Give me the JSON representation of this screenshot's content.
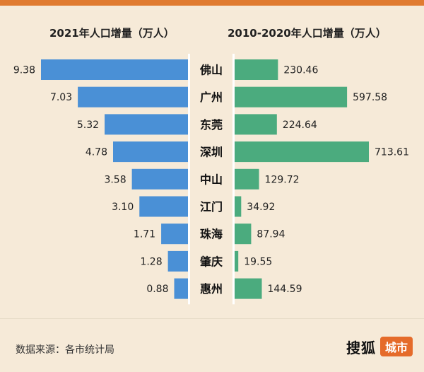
{
  "chart_data": {
    "type": "bar",
    "categories": [
      "佛山",
      "广州",
      "东莞",
      "深圳",
      "中山",
      "江门",
      "珠海",
      "肇庆",
      "惠州"
    ],
    "series": [
      {
        "title": "2021年人口增量（万人）",
        "values": [
          9.38,
          7.03,
          5.32,
          4.78,
          3.58,
          3.1,
          1.71,
          1.28,
          0.88
        ],
        "labels": [
          "9.38",
          "7.03",
          "5.32",
          "4.78",
          "3.58",
          "3.10",
          "1.71",
          "1.28",
          "0.88"
        ],
        "color": "#4a90d6",
        "direction": "left"
      },
      {
        "title": "2010-2020年人口增量（万人）",
        "values": [
          230.46,
          597.58,
          224.64,
          713.61,
          129.72,
          34.92,
          87.94,
          19.55,
          144.59
        ],
        "labels": [
          "230.46",
          "597.58",
          "224.64",
          "713.61",
          "129.72",
          "34.92",
          "87.94",
          "19.55",
          "144.59"
        ],
        "color": "#4bab7e",
        "direction": "right"
      }
    ]
  },
  "footer": {
    "source": "数据来源：各市统计局",
    "logo_main": "搜狐",
    "logo_badge": "城市"
  }
}
